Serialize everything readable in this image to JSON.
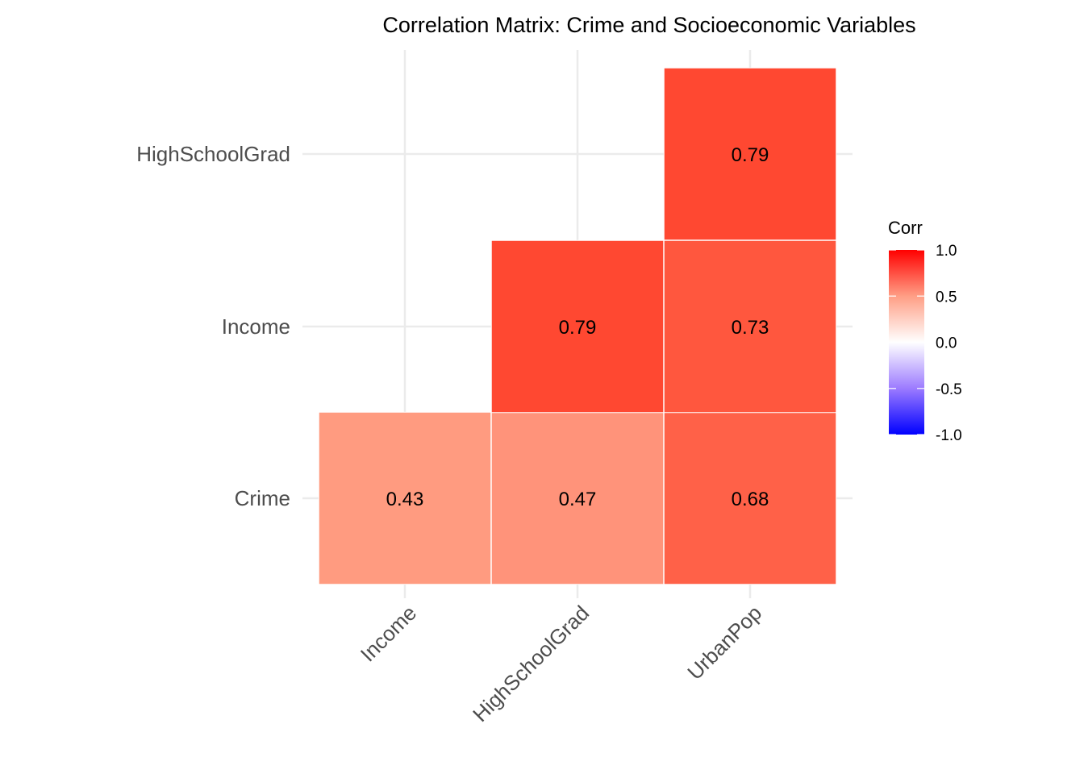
{
  "chart_data": {
    "type": "heatmap",
    "title": "Correlation Matrix: Crime and Socioeconomic Variables",
    "xlabel": "",
    "ylabel": "",
    "x_categories": [
      "Income",
      "HighSchoolGrad",
      "UrbanPop"
    ],
    "y_categories": [
      "Crime",
      "Income",
      "HighSchoolGrad"
    ],
    "cells": [
      {
        "x": "Income",
        "y": "Crime",
        "value": 0.43,
        "label": "0.43",
        "color": "#FF9B80"
      },
      {
        "x": "HighSchoolGrad",
        "y": "Crime",
        "value": 0.47,
        "label": "0.47",
        "color": "#FF937A"
      },
      {
        "x": "UrbanPop",
        "y": "Crime",
        "value": 0.68,
        "label": "0.68",
        "color": "#FF6148"
      },
      {
        "x": "HighSchoolGrad",
        "y": "Income",
        "value": 0.79,
        "label": "0.79",
        "color": "#FF4831"
      },
      {
        "x": "UrbanPop",
        "y": "Income",
        "value": 0.73,
        "label": "0.73",
        "color": "#FF573E"
      },
      {
        "x": "UrbanPop",
        "y": "HighSchoolGrad",
        "value": 0.79,
        "label": "0.79",
        "color": "#FF4831"
      }
    ],
    "legend": {
      "title": "Corr",
      "position": "right",
      "range": [
        -1,
        1
      ],
      "ticks": [
        1.0,
        0.5,
        0.0,
        -0.5,
        -1.0
      ],
      "tick_labels": [
        "1.0",
        "0.5",
        "0.0",
        "-0.5",
        "-1.0"
      ],
      "low_color": "#0000FF",
      "mid_color": "#FFFFFF",
      "high_color": "#FF0000"
    },
    "grid": true
  }
}
